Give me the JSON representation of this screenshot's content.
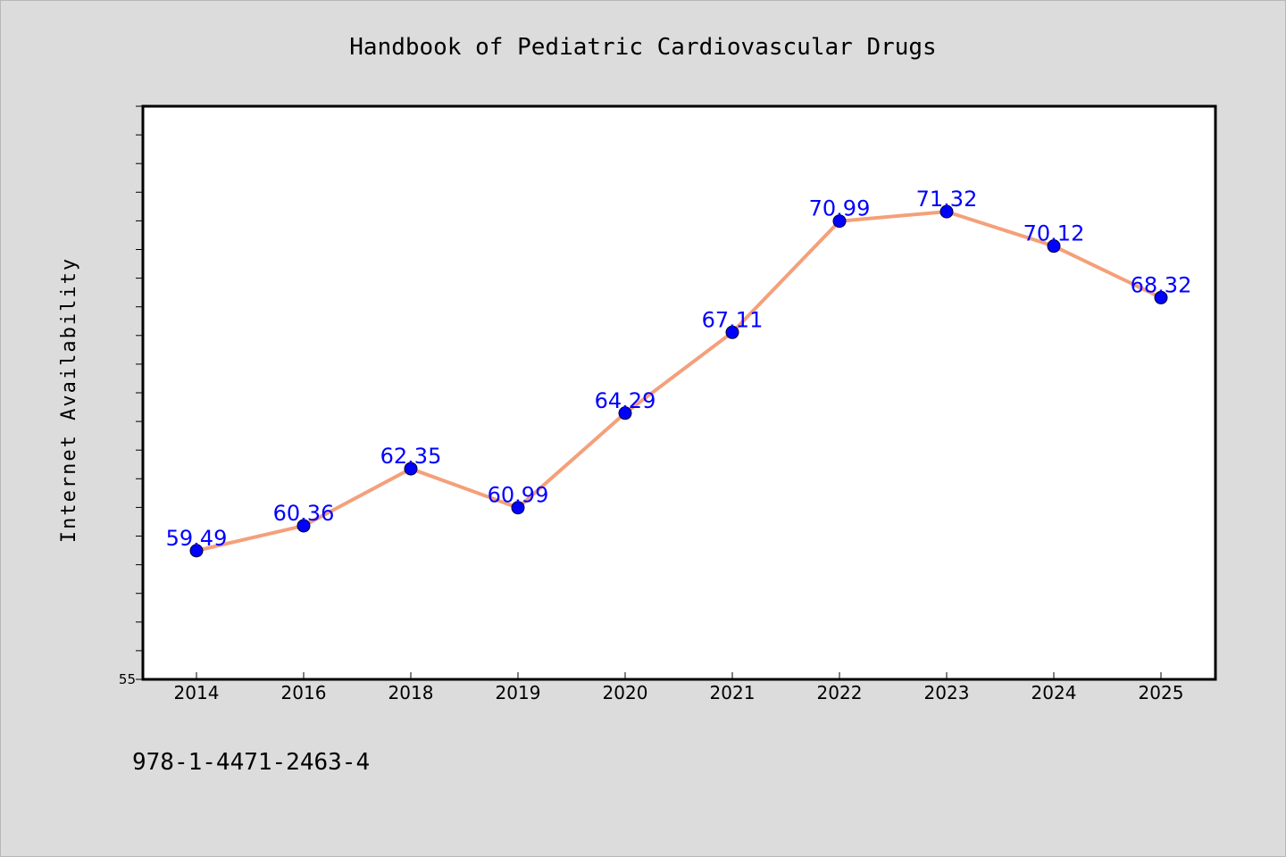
{
  "chart_data": {
    "type": "line",
    "title": "Handbook of Pediatric Cardiovascular Drugs",
    "xlabel": "",
    "ylabel": "Internet Availability",
    "categories": [
      "2014",
      "2016",
      "2018",
      "2019",
      "2020",
      "2021",
      "2022",
      "2023",
      "2024",
      "2025"
    ],
    "series": [
      {
        "values": [
          59.49,
          60.36,
          62.35,
          60.99,
          64.29,
          67.11,
          70.99,
          71.32,
          70.12,
          68.32
        ],
        "labels": [
          "59.49",
          "60.36",
          "62.35",
          "60.99",
          "64.29",
          "67.11",
          "70.99",
          "71.32",
          "70.12",
          "68.32"
        ],
        "line_color": "#f4a07a",
        "marker_color": "#0000ff"
      }
    ],
    "ylim": [
      55,
      75
    ],
    "ytick_labels": [
      "55"
    ],
    "grid": false,
    "legend": "none"
  },
  "footer": {
    "isbn": "978-1-4471-2463-4"
  },
  "colors": {
    "background": "#dcdcdc",
    "plot_background": "#ffffff",
    "axis": "#000000",
    "data_label": "#0000ff"
  }
}
